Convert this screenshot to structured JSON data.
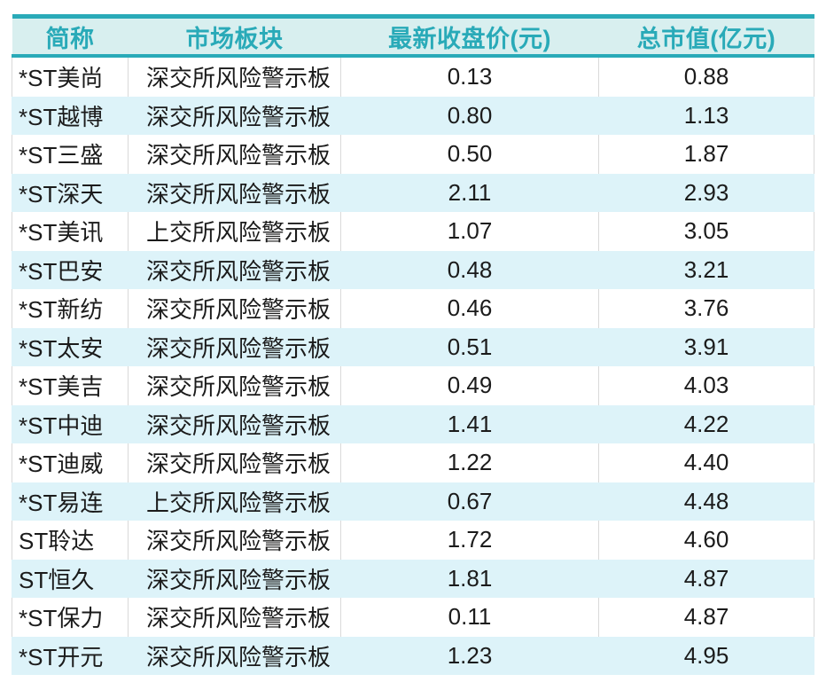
{
  "colors": {
    "accent_teal": "#29aab8",
    "header_bg": "#d8efef",
    "stripe_bg": "#ddf3f9",
    "gridline": "#d9d9d9",
    "body_text": "#1b1b1b"
  },
  "table": {
    "columns": [
      {
        "key": "name",
        "label": "简称"
      },
      {
        "key": "board",
        "label": "市场板块"
      },
      {
        "key": "price",
        "label": "最新收盘价(元)"
      },
      {
        "key": "cap",
        "label": "总市值(亿元)"
      }
    ],
    "rows": [
      {
        "name": "*ST美尚",
        "board": "深交所风险警示板",
        "price": "0.13",
        "cap": "0.88"
      },
      {
        "name": "*ST越博",
        "board": "深交所风险警示板",
        "price": "0.80",
        "cap": "1.13"
      },
      {
        "name": "*ST三盛",
        "board": "深交所风险警示板",
        "price": "0.50",
        "cap": "1.87"
      },
      {
        "name": "*ST深天",
        "board": "深交所风险警示板",
        "price": "2.11",
        "cap": "2.93"
      },
      {
        "name": "*ST美讯",
        "board": "上交所风险警示板",
        "price": "1.07",
        "cap": "3.05"
      },
      {
        "name": "*ST巴安",
        "board": "深交所风险警示板",
        "price": "0.48",
        "cap": "3.21"
      },
      {
        "name": "*ST新纺",
        "board": "深交所风险警示板",
        "price": "0.46",
        "cap": "3.76"
      },
      {
        "name": "*ST太安",
        "board": "深交所风险警示板",
        "price": "0.51",
        "cap": "3.91"
      },
      {
        "name": "*ST美吉",
        "board": "深交所风险警示板",
        "price": "0.49",
        "cap": "4.03"
      },
      {
        "name": "*ST中迪",
        "board": "深交所风险警示板",
        "price": "1.41",
        "cap": "4.22"
      },
      {
        "name": "*ST迪威",
        "board": "深交所风险警示板",
        "price": "1.22",
        "cap": "4.40"
      },
      {
        "name": "*ST易连",
        "board": "上交所风险警示板",
        "price": "0.67",
        "cap": "4.48"
      },
      {
        "name": "ST聆达",
        "board": "深交所风险警示板",
        "price": "1.72",
        "cap": "4.60"
      },
      {
        "name": "ST恒久",
        "board": "深交所风险警示板",
        "price": "1.81",
        "cap": "4.87"
      },
      {
        "name": "*ST保力",
        "board": "深交所风险警示板",
        "price": "0.11",
        "cap": "4.87"
      },
      {
        "name": "*ST开元",
        "board": "深交所风险警示板",
        "price": "1.23",
        "cap": "4.95"
      }
    ]
  },
  "chart_data": {
    "type": "table",
    "title": "",
    "columns": [
      "简称",
      "市场板块",
      "最新收盘价(元)",
      "总市值(亿元)"
    ],
    "rows": [
      [
        "*ST美尚",
        "深交所风险警示板",
        0.13,
        0.88
      ],
      [
        "*ST越博",
        "深交所风险警示板",
        0.8,
        1.13
      ],
      [
        "*ST三盛",
        "深交所风险警示板",
        0.5,
        1.87
      ],
      [
        "*ST深天",
        "深交所风险警示板",
        2.11,
        2.93
      ],
      [
        "*ST美讯",
        "上交所风险警示板",
        1.07,
        3.05
      ],
      [
        "*ST巴安",
        "深交所风险警示板",
        0.48,
        3.21
      ],
      [
        "*ST新纺",
        "深交所风险警示板",
        0.46,
        3.76
      ],
      [
        "*ST太安",
        "深交所风险警示板",
        0.51,
        3.91
      ],
      [
        "*ST美吉",
        "深交所风险警示板",
        0.49,
        4.03
      ],
      [
        "*ST中迪",
        "深交所风险警示板",
        1.41,
        4.22
      ],
      [
        "*ST迪威",
        "深交所风险警示板",
        1.22,
        4.4
      ],
      [
        "*ST易连",
        "上交所风险警示板",
        0.67,
        4.48
      ],
      [
        "ST聆达",
        "深交所风险警示板",
        1.72,
        4.6
      ],
      [
        "ST恒久",
        "深交所风险警示板",
        1.81,
        4.87
      ],
      [
        "*ST保力",
        "深交所风险警示板",
        0.11,
        4.87
      ],
      [
        "*ST开元",
        "深交所风险警示板",
        1.23,
        4.95
      ]
    ]
  }
}
